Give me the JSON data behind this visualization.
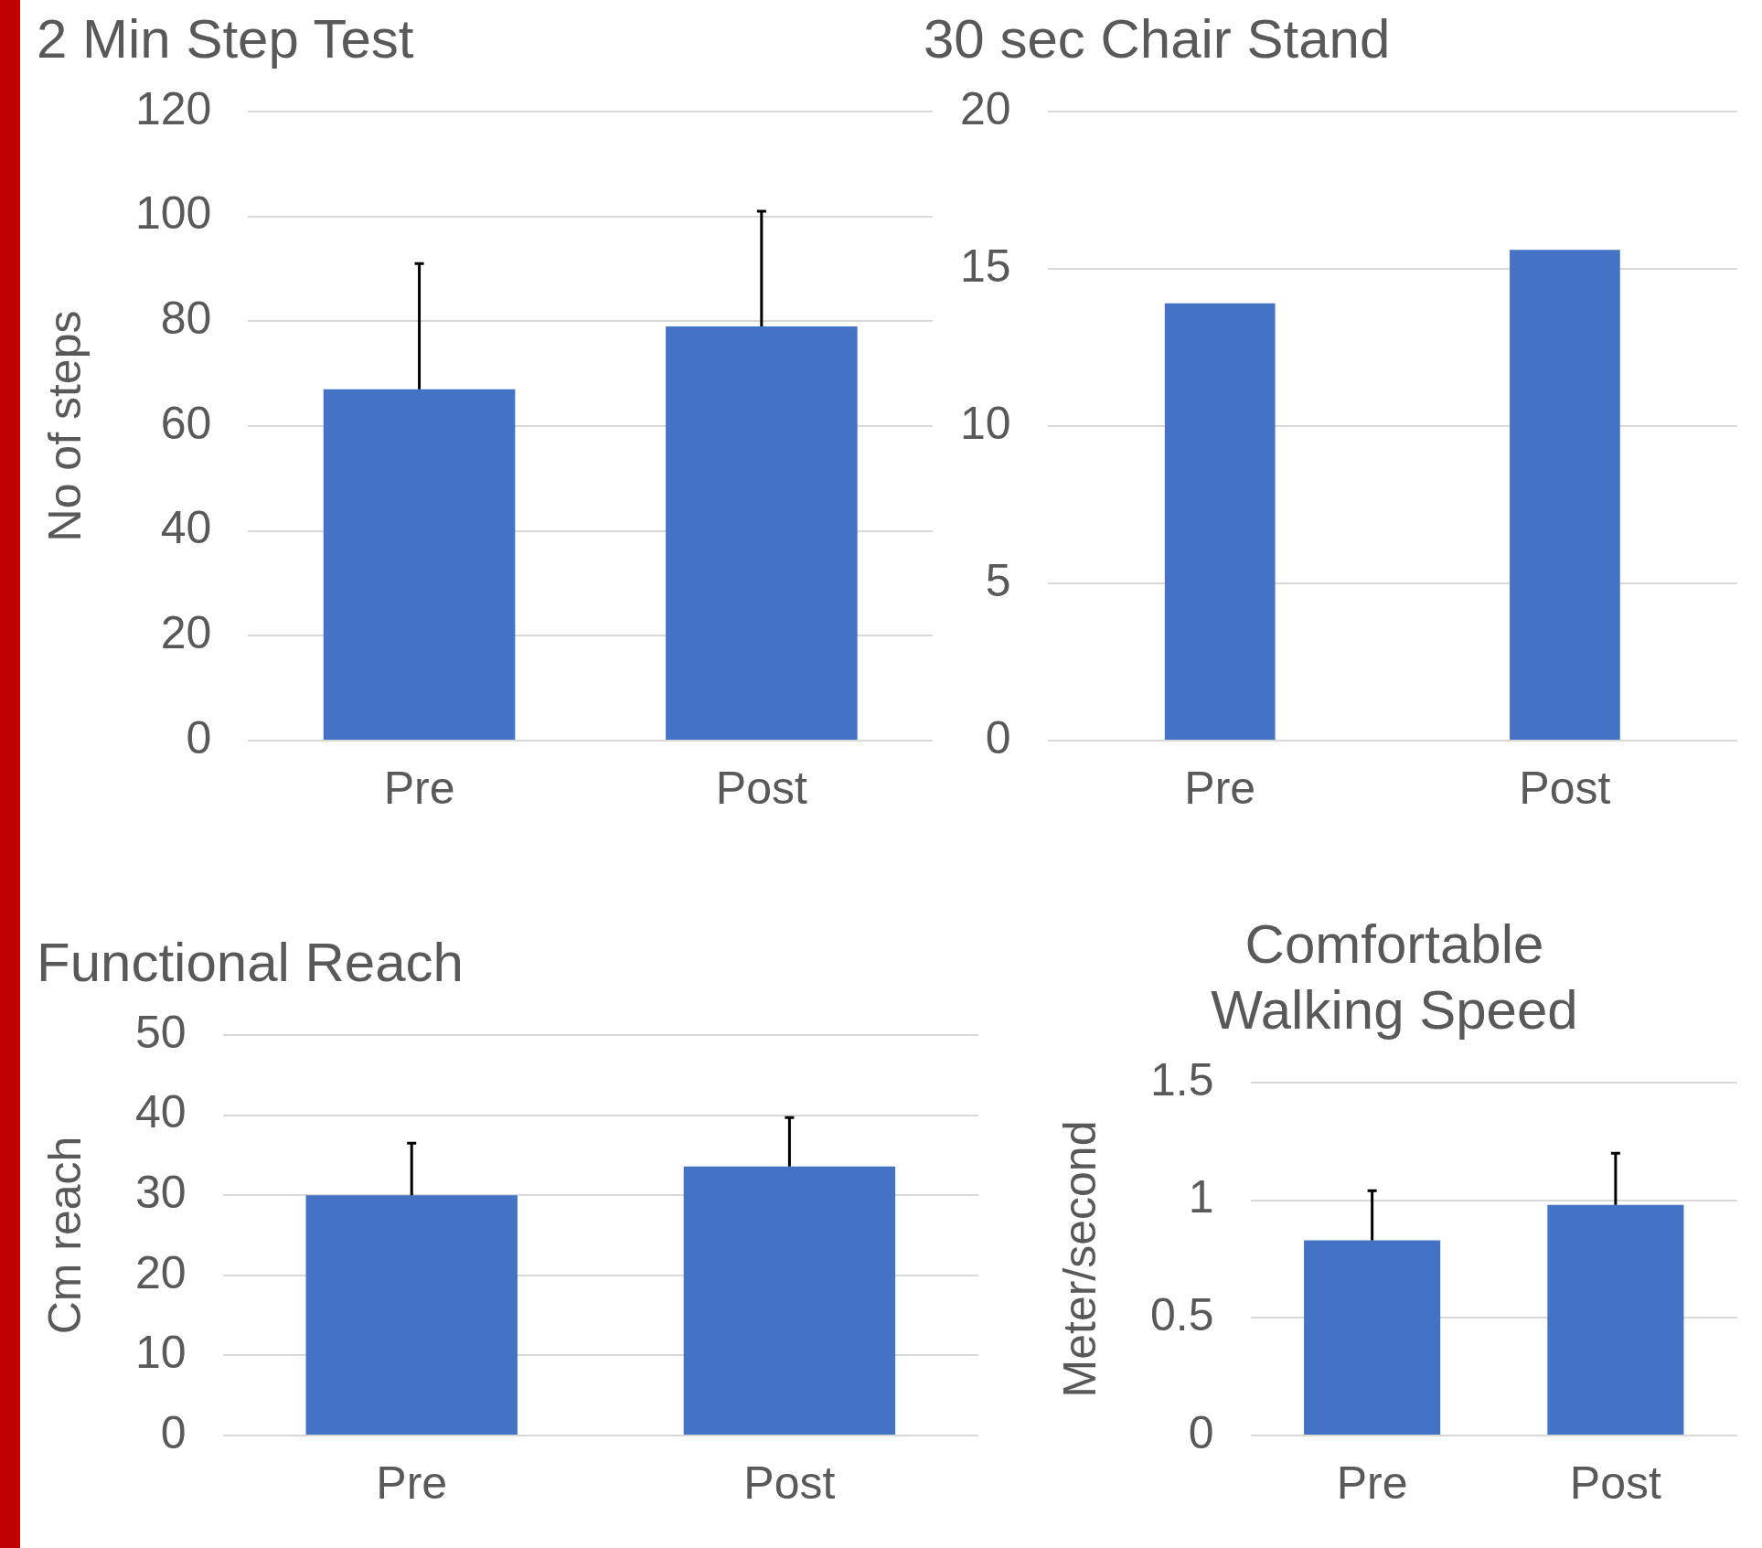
{
  "chart_data": [
    {
      "type": "bar",
      "title": "2 Min Step Test",
      "ylabel": "No of steps",
      "categories": [
        "Pre",
        "Post"
      ],
      "values": [
        67,
        79
      ],
      "errors": [
        [
          67,
          91
        ],
        [
          79,
          101
        ]
      ],
      "color": "#4472c4",
      "ylim": [
        0,
        120
      ],
      "yticks": [
        0,
        20,
        40,
        60,
        80,
        100,
        120
      ],
      "grid": "y"
    },
    {
      "type": "bar",
      "title": "30 sec Chair Stand",
      "categories": [
        "Pre",
        "Post"
      ],
      "values": [
        13.9,
        15.6
      ],
      "color": "#4472c4",
      "ylim": [
        0,
        20
      ],
      "yticks": [
        0,
        5,
        10,
        15,
        20
      ],
      "grid": "y"
    },
    {
      "type": "bar",
      "title": "Functional Reach",
      "ylabel": "Cm reach",
      "categories": [
        "Pre",
        "Post"
      ],
      "values": [
        30,
        33.6
      ],
      "errors": [
        [
          30,
          36.5
        ],
        [
          33.6,
          39.7
        ]
      ],
      "color": "#4472c4",
      "ylim": [
        0,
        50
      ],
      "yticks": [
        0,
        10,
        20,
        30,
        40,
        50
      ],
      "grid": "y"
    },
    {
      "type": "bar",
      "title": "Comfortable\nWalking Speed",
      "ylabel": "Meter/second",
      "categories": [
        "Pre",
        "Post"
      ],
      "values": [
        0.83,
        0.98
      ],
      "errors": [
        [
          0.83,
          1.04
        ],
        [
          0.98,
          1.2
        ]
      ],
      "color": "#4472c4",
      "ylim": [
        0,
        1.5
      ],
      "yticks": [
        0,
        0.5,
        1,
        1.5
      ],
      "grid": "y"
    }
  ]
}
